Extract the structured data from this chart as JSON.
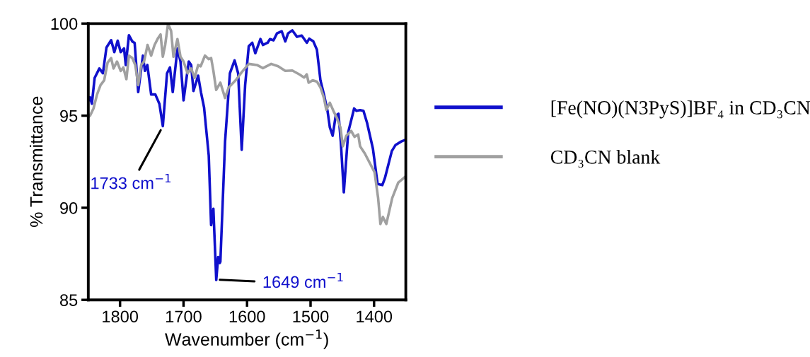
{
  "chart_data": {
    "type": "line",
    "xlabel": "Wavenumber (cm$^{−1}$)",
    "ylabel": "% Transmittance",
    "xlim": [
      1850,
      1350
    ],
    "xticks": [
      1800,
      1700,
      1600,
      1500,
      1400
    ],
    "ylim": [
      85,
      100
    ],
    "yticks": [
      85,
      90,
      95,
      100
    ],
    "grid": false,
    "legend": "right",
    "marker": "none",
    "line_style": "solid",
    "series": [
      {
        "name": "[Fe(NO)(N3PyS)]BF₄ in CD₃CN",
        "color": "#1010cc",
        "x": [
          1850,
          1847.3,
          1844.4,
          1840,
          1832.6,
          1827,
          1821.4,
          1814,
          1809,
          1803.7,
          1799,
          1793.7,
          1791,
          1786,
          1780.7,
          1777,
          1771.4,
          1764,
          1760.8,
          1757,
          1751,
          1744.4,
          1738,
          1732.6,
          1726,
          1721.4,
          1717,
          1709.6,
          1704.8,
          1700,
          1691.8,
          1688,
          1684.4,
          1677,
          1672.6,
          1667.7,
          1660.3,
          1656.6,
          1653,
          1648.5,
          1645.5,
          1643,
          1642,
          1634.6,
          1627,
          1619.6,
          1614,
          1608.4,
          1603,
          1597.3,
          1591.8,
          1587,
          1578.9,
          1575,
          1567.6,
          1563.9,
          1558.3,
          1552.8,
          1545.4,
          1539.8,
          1535.4,
          1528.7,
          1521.3,
          1513.9,
          1505.8,
          1502,
          1495.6,
          1490,
          1484.4,
          1478.9,
          1473.3,
          1469.6,
          1465.2,
          1460.4,
          1456,
          1452.4,
          1447.6,
          1440.7,
          1431.4,
          1427.7,
          1422,
          1416.7,
          1411.1,
          1401.8,
          1394.4,
          1387,
          1383,
          1372,
          1366.4,
          1357.1,
          1350
        ],
        "values": [
          95.8,
          96.0,
          95.65,
          97.05,
          97.56,
          97.3,
          98.7,
          99.1,
          98.45,
          99.07,
          98.45,
          98.65,
          97.75,
          99.37,
          99.03,
          98.95,
          96.28,
          98.26,
          97.43,
          97.75,
          96.15,
          96.15,
          95.64,
          94.43,
          97.3,
          97.62,
          96.28,
          98.65,
          97.94,
          95.83,
          97.94,
          97.75,
          96.34,
          97.17,
          96.28,
          95.45,
          92.83,
          89.06,
          89.95,
          86.08,
          87.33,
          87.0,
          87.07,
          93.6,
          97.3,
          98.0,
          97.3,
          93.15,
          96.66,
          98.77,
          98.96,
          98.39,
          99.16,
          98.84,
          98.96,
          99.16,
          99.09,
          99.47,
          99.58,
          99.03,
          99.47,
          99.63,
          99.28,
          99.35,
          98.96,
          99.18,
          99.03,
          98.58,
          96.92,
          96.15,
          95.26,
          94.36,
          93.91,
          95.0,
          95.1,
          93.6,
          90.84,
          94.1,
          95.39,
          95.26,
          95.3,
          95.26,
          94.62,
          93.21,
          91.29,
          91.23,
          91.6,
          93.08,
          93.4,
          93.6,
          93.7
        ]
      },
      {
        "name": "CD₃CN blank",
        "color": "#a0a0a0",
        "x": [
          1850,
          1847.3,
          1841.8,
          1836.2,
          1830.7,
          1825,
          1819.6,
          1814,
          1810.3,
          1804.8,
          1799,
          1794.8,
          1790,
          1786,
          1780.7,
          1776,
          1771.4,
          1766.7,
          1762.2,
          1756.7,
          1751,
          1745.6,
          1740,
          1736.2,
          1732.6,
          1728.9,
          1724.4,
          1719.6,
          1715.9,
          1709.6,
          1704.8,
          1700,
          1693.7,
          1688,
          1682.6,
          1677,
          1673,
          1666.3,
          1660.3,
          1656.6,
          1653,
          1648.6,
          1642,
          1634.6,
          1629,
          1617.9,
          1608.4,
          1597.3,
          1584.4,
          1575,
          1562,
          1551,
          1539.8,
          1528.7,
          1517.6,
          1510,
          1506,
          1503,
          1496.7,
          1490,
          1484.4,
          1478.9,
          1475.2,
          1469.6,
          1464,
          1458.5,
          1452.9,
          1449.2,
          1443.7,
          1436,
          1430.7,
          1425,
          1422,
          1414.6,
          1399.2,
          1393.6,
          1390,
          1386,
          1380.7,
          1371.4,
          1362,
          1351
        ],
        "values": [
          94.9,
          95.0,
          95.39,
          96.15,
          96.66,
          96.92,
          97.88,
          98.13,
          97.56,
          97.94,
          97.43,
          97.62,
          96.98,
          98.26,
          98.13,
          97.75,
          96.66,
          97.75,
          97.94,
          98.84,
          98.26,
          98.84,
          99.22,
          99.41,
          98.2,
          98.84,
          99.99,
          99.6,
          98.2,
          99.16,
          98.2,
          97.94,
          97.3,
          97.56,
          97.05,
          97.75,
          97.68,
          98.26,
          98.07,
          98.13,
          97.43,
          96.4,
          96.79,
          95.96,
          96.53,
          96.92,
          97.36,
          97.81,
          97.75,
          97.58,
          97.81,
          97.68,
          97.43,
          97.45,
          97.24,
          97.07,
          97.24,
          96.79,
          96.92,
          96.85,
          96.53,
          95.96,
          95.32,
          95.7,
          95.26,
          94.87,
          94.36,
          93.34,
          93.91,
          94.17,
          93.85,
          93.98,
          93.34,
          92.95,
          91.93,
          90.53,
          89.12,
          89.5,
          89.12,
          90.53,
          91.36,
          91.68
        ]
      }
    ],
    "annotations": [
      {
        "text": "1733 cm$^{−1}$",
        "x": 1733,
        "y": 94.4
      },
      {
        "text": "1649 cm$^{−1}$",
        "x": 1649,
        "y": 86.1
      }
    ]
  }
}
